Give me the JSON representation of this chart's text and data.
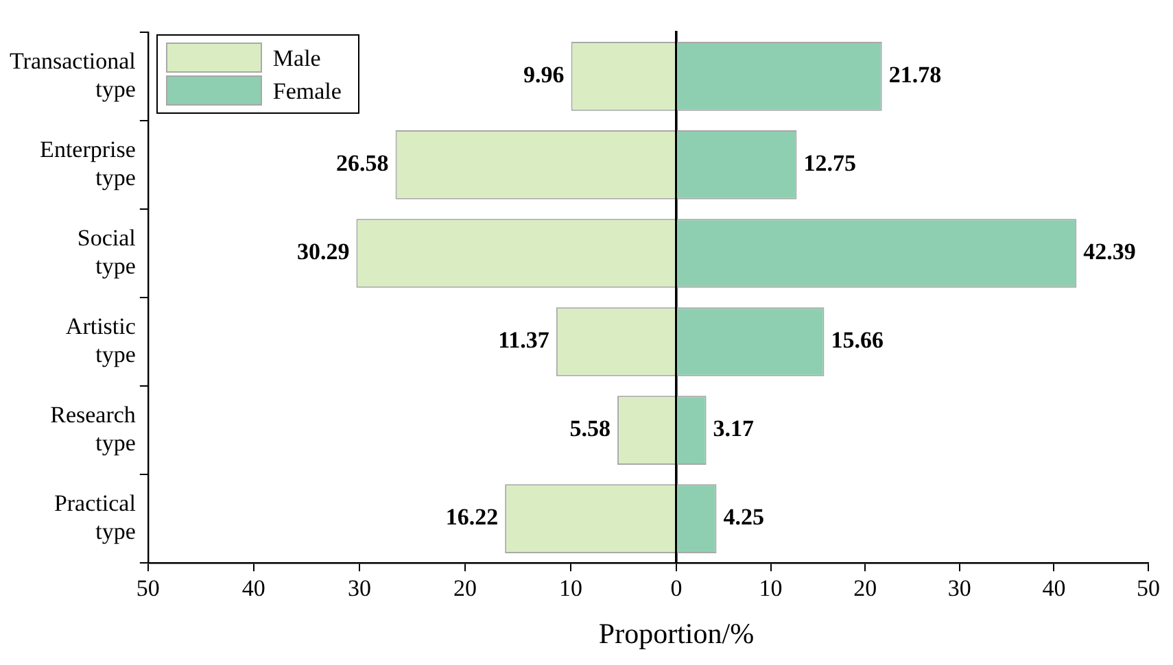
{
  "chart_data": [
    {
      "type": "bar",
      "orientation": "horizontal",
      "xlabel": "Proportion/%",
      "categories": [
        "Transactional type",
        "Enterprise type",
        "Social type",
        "Artistic type",
        "Research type",
        "Practical type"
      ],
      "series": [
        {
          "name": "Male",
          "color": "#daedc2",
          "values": [
            9.96,
            26.58,
            30.29,
            11.37,
            5.58,
            16.22
          ]
        }
      ],
      "data_labels": true,
      "xlim": [
        50,
        0
      ],
      "xticks": [
        50,
        40,
        30,
        20,
        10
      ],
      "legend": "top left",
      "grid": false
    },
    {
      "type": "bar",
      "orientation": "horizontal",
      "series": [
        {
          "name": "Female",
          "color": "#8ecfb1",
          "values": [
            21.78,
            12.75,
            42.39,
            15.66,
            3.17,
            4.25
          ]
        }
      ],
      "data_labels": true,
      "xlim": [
        0,
        50
      ],
      "xticks": [
        0,
        10,
        20,
        30,
        40,
        50
      ],
      "tick_labels": "x",
      "grid": false
    }
  ]
}
